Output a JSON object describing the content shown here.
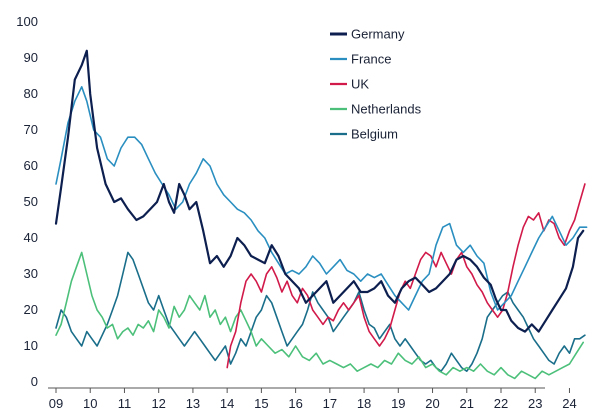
{
  "chart_data": {
    "type": "line",
    "title": "",
    "xlabel": "",
    "ylabel": "",
    "ylim": [
      0,
      100
    ],
    "xlim": [
      2009.0,
      2024.6
    ],
    "x_tick_labels": [
      "09",
      "10",
      "11",
      "12",
      "13",
      "14",
      "15",
      "16",
      "17",
      "18",
      "19",
      "20",
      "21",
      "22",
      "23",
      "24"
    ],
    "y_tick_labels": [
      "0",
      "10",
      "20",
      "30",
      "40",
      "50",
      "60",
      "70",
      "80",
      "90",
      "100"
    ],
    "grid": false,
    "legend_position": "top-right",
    "series": [
      {
        "name": "Germany",
        "color": "#0d1f4f",
        "x": [
          2009.0,
          2009.15,
          2009.35,
          2009.55,
          2009.75,
          2009.9,
          2010.0,
          2010.2,
          2010.45,
          2010.7,
          2010.9,
          2011.1,
          2011.35,
          2011.55,
          2011.75,
          2011.95,
          2012.15,
          2012.3,
          2012.45,
          2012.6,
          2012.75,
          2012.9,
          2013.1,
          2013.3,
          2013.5,
          2013.7,
          2013.9,
          2014.1,
          2014.3,
          2014.5,
          2014.7,
          2014.9,
          2015.1,
          2015.3,
          2015.5,
          2015.7,
          2015.9,
          2016.1,
          2016.3,
          2016.5,
          2016.7,
          2016.9,
          2017.1,
          2017.3,
          2017.5,
          2017.7,
          2017.9,
          2018.1,
          2018.3,
          2018.5,
          2018.7,
          2018.9,
          2019.1,
          2019.3,
          2019.5,
          2019.7,
          2019.9,
          2020.1,
          2020.3,
          2020.5,
          2020.7,
          2020.9,
          2021.1,
          2021.3,
          2021.5,
          2021.7,
          2021.85,
          2022.0,
          2022.15,
          2022.3,
          2022.5,
          2022.7,
          2022.9,
          2023.1,
          2023.3,
          2023.5,
          2023.7,
          2023.9,
          2024.1,
          2024.25,
          2024.4
        ],
        "y": [
          44,
          54,
          68,
          84,
          88,
          92,
          80,
          65,
          55,
          50,
          51,
          48,
          45,
          46,
          48,
          50,
          55,
          50,
          47,
          55,
          52,
          48,
          50,
          42,
          33,
          35,
          32,
          35,
          40,
          38,
          35,
          34,
          33,
          38,
          35,
          30,
          28,
          26,
          22,
          24,
          26,
          28,
          22,
          24,
          26,
          28,
          25,
          25,
          26,
          28,
          24,
          22,
          26,
          28,
          29,
          27,
          25,
          26,
          28,
          30,
          34,
          35,
          34,
          32,
          29,
          27,
          23,
          20,
          20,
          17,
          15,
          14,
          16,
          14,
          17,
          20,
          23,
          26,
          32,
          40,
          42
        ]
      },
      {
        "name": "France",
        "color": "#2a8fc0",
        "x": [
          2009.0,
          2009.15,
          2009.35,
          2009.55,
          2009.75,
          2009.9,
          2010.1,
          2010.3,
          2010.5,
          2010.7,
          2010.9,
          2011.1,
          2011.3,
          2011.5,
          2011.7,
          2011.9,
          2012.1,
          2012.3,
          2012.5,
          2012.7,
          2012.9,
          2013.1,
          2013.3,
          2013.5,
          2013.7,
          2013.9,
          2014.1,
          2014.3,
          2014.5,
          2014.7,
          2014.9,
          2015.1,
          2015.3,
          2015.5,
          2015.7,
          2015.9,
          2016.1,
          2016.3,
          2016.5,
          2016.7,
          2016.9,
          2017.1,
          2017.3,
          2017.5,
          2017.7,
          2017.9,
          2018.1,
          2018.3,
          2018.5,
          2018.7,
          2018.9,
          2019.1,
          2019.3,
          2019.5,
          2019.7,
          2019.9,
          2020.1,
          2020.3,
          2020.5,
          2020.7,
          2020.9,
          2021.1,
          2021.3,
          2021.5,
          2021.7,
          2021.9,
          2022.1,
          2022.3,
          2022.5,
          2022.7,
          2022.9,
          2023.1,
          2023.3,
          2023.5,
          2023.7,
          2023.9,
          2024.1,
          2024.3,
          2024.5
        ],
        "y": [
          55,
          62,
          72,
          78,
          82,
          78,
          70,
          68,
          62,
          60,
          65,
          68,
          68,
          66,
          62,
          58,
          55,
          52,
          48,
          50,
          55,
          58,
          62,
          60,
          55,
          52,
          50,
          48,
          47,
          45,
          42,
          40,
          36,
          33,
          30,
          31,
          30,
          32,
          35,
          33,
          30,
          32,
          34,
          31,
          30,
          28,
          30,
          29,
          30,
          27,
          24,
          22,
          20,
          24,
          28,
          30,
          38,
          43,
          44,
          38,
          36,
          38,
          35,
          33,
          25,
          20,
          22,
          24,
          28,
          32,
          36,
          40,
          43,
          46,
          42,
          38,
          40,
          43,
          43
        ]
      },
      {
        "name": "UK",
        "color": "#d11a4a",
        "x": [
          2014.0,
          2014.1,
          2014.25,
          2014.4,
          2014.55,
          2014.7,
          2014.85,
          2015.0,
          2015.15,
          2015.3,
          2015.45,
          2015.6,
          2015.75,
          2015.9,
          2016.05,
          2016.2,
          2016.35,
          2016.5,
          2016.65,
          2016.8,
          2016.95,
          2017.1,
          2017.25,
          2017.4,
          2017.55,
          2017.7,
          2017.85,
          2018.0,
          2018.15,
          2018.3,
          2018.45,
          2018.6,
          2018.75,
          2018.9,
          2019.05,
          2019.2,
          2019.35,
          2019.5,
          2019.65,
          2019.8,
          2019.95,
          2020.1,
          2020.25,
          2020.4,
          2020.55,
          2020.7,
          2020.85,
          2021.0,
          2021.15,
          2021.3,
          2021.45,
          2021.6,
          2021.75,
          2021.9,
          2022.05,
          2022.2,
          2022.35,
          2022.5,
          2022.65,
          2022.8,
          2022.95,
          2023.1,
          2023.25,
          2023.4,
          2023.55,
          2023.7,
          2023.85,
          2024.0,
          2024.15,
          2024.3,
          2024.45
        ],
        "y": [
          4,
          10,
          14,
          22,
          28,
          30,
          28,
          25,
          30,
          32,
          29,
          25,
          28,
          24,
          22,
          26,
          24,
          20,
          18,
          16,
          18,
          17,
          20,
          22,
          20,
          22,
          24,
          18,
          14,
          12,
          10,
          12,
          15,
          20,
          25,
          28,
          26,
          30,
          34,
          36,
          35,
          32,
          36,
          33,
          30,
          34,
          36,
          32,
          30,
          27,
          25,
          22,
          20,
          18,
          20,
          25,
          32,
          38,
          43,
          46,
          45,
          47,
          42,
          45,
          44,
          40,
          38,
          42,
          45,
          50,
          55
        ]
      },
      {
        "name": "Netherlands",
        "color": "#4cc07a",
        "x": [
          2009.0,
          2009.15,
          2009.3,
          2009.45,
          2009.6,
          2009.75,
          2009.9,
          2010.05,
          2010.2,
          2010.35,
          2010.5,
          2010.65,
          2010.8,
          2010.95,
          2011.1,
          2011.25,
          2011.4,
          2011.55,
          2011.7,
          2011.85,
          2012.0,
          2012.15,
          2012.3,
          2012.45,
          2012.6,
          2012.75,
          2012.9,
          2013.05,
          2013.2,
          2013.35,
          2013.5,
          2013.65,
          2013.8,
          2013.95,
          2014.1,
          2014.25,
          2014.4,
          2014.55,
          2014.7,
          2014.85,
          2015.0,
          2015.2,
          2015.4,
          2015.6,
          2015.8,
          2016.0,
          2016.2,
          2016.4,
          2016.6,
          2016.8,
          2017.0,
          2017.2,
          2017.4,
          2017.6,
          2017.8,
          2018.0,
          2018.2,
          2018.4,
          2018.6,
          2018.8,
          2019.0,
          2019.2,
          2019.4,
          2019.6,
          2019.8,
          2020.0,
          2020.2,
          2020.4,
          2020.6,
          2020.8,
          2021.0,
          2021.2,
          2021.4,
          2021.6,
          2021.8,
          2022.0,
          2022.2,
          2022.4,
          2022.6,
          2022.8,
          2023.0,
          2023.2,
          2023.4,
          2023.6,
          2023.8,
          2024.0,
          2024.2,
          2024.4
        ],
        "y": [
          13,
          16,
          22,
          28,
          32,
          36,
          30,
          24,
          20,
          18,
          15,
          16,
          12,
          14,
          15,
          13,
          16,
          15,
          17,
          14,
          20,
          18,
          15,
          21,
          18,
          20,
          24,
          22,
          20,
          24,
          18,
          20,
          16,
          18,
          14,
          18,
          20,
          17,
          14,
          10,
          12,
          10,
          8,
          9,
          7,
          10,
          7,
          6,
          8,
          5,
          6,
          5,
          4,
          5,
          3,
          4,
          5,
          4,
          6,
          5,
          8,
          6,
          5,
          7,
          4,
          5,
          3,
          2,
          4,
          3,
          4,
          3,
          5,
          3,
          2,
          4,
          2,
          1,
          3,
          2,
          1,
          3,
          2,
          3,
          4,
          5,
          8,
          11
        ]
      },
      {
        "name": "Belgium",
        "color": "#1a6e8a",
        "x": [
          2009.0,
          2009.15,
          2009.3,
          2009.45,
          2009.6,
          2009.75,
          2009.9,
          2010.05,
          2010.2,
          2010.35,
          2010.5,
          2010.65,
          2010.8,
          2010.95,
          2011.1,
          2011.25,
          2011.4,
          2011.55,
          2011.7,
          2011.85,
          2012.0,
          2012.15,
          2012.3,
          2012.45,
          2012.6,
          2012.75,
          2012.9,
          2013.05,
          2013.2,
          2013.35,
          2013.5,
          2013.65,
          2013.8,
          2013.95,
          2014.1,
          2014.25,
          2014.4,
          2014.55,
          2014.7,
          2014.85,
          2015.0,
          2015.15,
          2015.3,
          2015.45,
          2015.6,
          2015.75,
          2015.9,
          2016.05,
          2016.2,
          2016.35,
          2016.5,
          2016.65,
          2016.8,
          2016.95,
          2017.1,
          2017.25,
          2017.4,
          2017.55,
          2017.7,
          2017.85,
          2018.0,
          2018.15,
          2018.3,
          2018.45,
          2018.6,
          2018.75,
          2018.9,
          2019.05,
          2019.2,
          2019.35,
          2019.5,
          2019.65,
          2019.8,
          2019.95,
          2020.1,
          2020.25,
          2020.4,
          2020.55,
          2020.7,
          2020.85,
          2021.0,
          2021.15,
          2021.3,
          2021.45,
          2021.6,
          2021.75,
          2021.9,
          2022.05,
          2022.2,
          2022.35,
          2022.5,
          2022.65,
          2022.8,
          2022.95,
          2023.1,
          2023.25,
          2023.4,
          2023.55,
          2023.7,
          2023.85,
          2024.0,
          2024.15,
          2024.3,
          2024.45
        ],
        "y": [
          15,
          20,
          18,
          14,
          12,
          10,
          14,
          12,
          10,
          13,
          16,
          20,
          24,
          30,
          36,
          34,
          30,
          26,
          22,
          20,
          24,
          20,
          16,
          14,
          12,
          10,
          12,
          14,
          12,
          10,
          8,
          6,
          8,
          10,
          5,
          8,
          12,
          10,
          14,
          18,
          20,
          24,
          22,
          18,
          14,
          10,
          12,
          14,
          16,
          20,
          25,
          22,
          20,
          18,
          14,
          16,
          18,
          20,
          22,
          25,
          20,
          16,
          15,
          12,
          14,
          16,
          12,
          10,
          12,
          10,
          8,
          6,
          5,
          6,
          4,
          3,
          5,
          8,
          6,
          4,
          3,
          5,
          8,
          12,
          18,
          20,
          22,
          24,
          25,
          22,
          20,
          18,
          15,
          12,
          10,
          8,
          6,
          5,
          8,
          10,
          8,
          12,
          12,
          13
        ]
      }
    ]
  }
}
